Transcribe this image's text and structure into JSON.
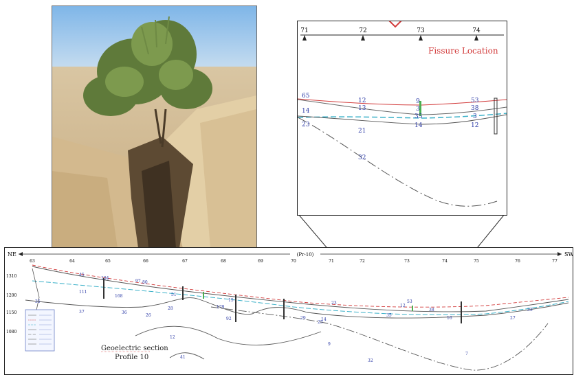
{
  "inset": {
    "title": "Fissure Location",
    "stations": [
      "71",
      "72",
      "73",
      "74"
    ],
    "layer_labels": {
      "l65": "65",
      "l12": "12",
      "l9": "9",
      "l53": "53",
      "l13": "13",
      "l38": "38",
      "l3a": "3",
      "l14left": "14",
      "l35": "35",
      "l3b": "3",
      "l23": "23",
      "l14mid": "14",
      "l12b": "12",
      "l21": "21",
      "l32": "32"
    }
  },
  "section": {
    "direction_left": "NE",
    "direction_right": "SW",
    "profile_id": "(Pr-10)",
    "caption_line1": "Geoelectric section",
    "caption_line2": "Profile 10",
    "stations": [
      "63",
      "64",
      "65",
      "66",
      "67",
      "68",
      "69",
      "70",
      "71",
      "72",
      "73",
      "74",
      "75",
      "76",
      "77"
    ],
    "elevations": [
      "1310",
      "1200",
      "1150",
      "1080"
    ],
    "layer_labels": [
      "45",
      "104",
      "97",
      "80",
      "111",
      "168",
      "35",
      "37",
      "36",
      "26",
      "51",
      "28",
      "179",
      "15",
      "92",
      "29",
      "25",
      "23",
      "14",
      "12",
      "53",
      "35",
      "38",
      "16",
      "27",
      "33",
      "12",
      "41",
      "9",
      "32",
      "7"
    ]
  },
  "colors": {
    "surface_red": "#d23a3a",
    "water_table": "#3ab0c8",
    "layer_line": "#555555",
    "label_blue": "#2b3aa6",
    "marker_green": "#4caf50",
    "zoom_arrow": "#d23a3a"
  }
}
